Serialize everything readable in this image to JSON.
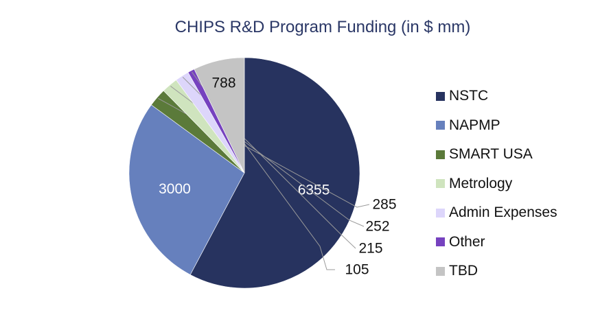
{
  "chart_data": {
    "type": "pie",
    "title": "CHIPS R&D Program Funding (in $ mm)",
    "categories": [
      "NSTC",
      "NAPMP",
      "SMART USA",
      "Metrology",
      "Admin Expenses",
      "Other",
      "TBD"
    ],
    "values": [
      6355,
      3000,
      285,
      252,
      215,
      105,
      788
    ],
    "colors": [
      "#27335f",
      "#6680bd",
      "#5b7a3a",
      "#cfe4be",
      "#ddd6fb",
      "#7642bf",
      "#c4c4c4"
    ],
    "data_labels": [
      "6355",
      "3000",
      "285",
      "252",
      "215",
      "105",
      "788"
    ],
    "legend": "right",
    "start_angle_deg": 0,
    "direction": "clockwise"
  }
}
